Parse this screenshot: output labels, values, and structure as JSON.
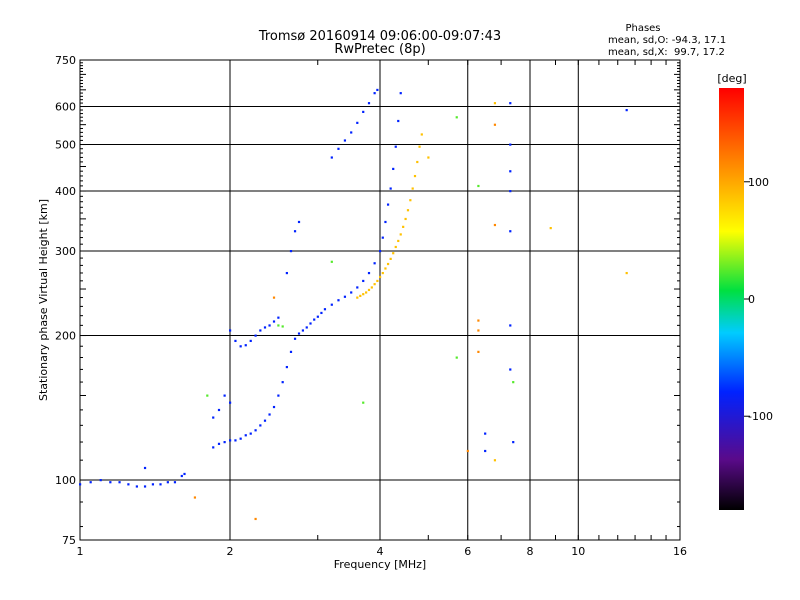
{
  "chart_data": {
    "type": "scatter",
    "title": "Tromsø 20160914 09:06:00-09:07:43",
    "subtitle": "RwPretec (8p)",
    "xlabel": "Frequency [MHz]",
    "ylabel": "Stationary phase Virtual Height [km]",
    "x_scale": "log",
    "y_scale": "log",
    "xlim": [
      1,
      16
    ],
    "ylim": [
      75,
      750
    ],
    "x_ticks": [
      "1",
      "2",
      "4",
      "6",
      "8",
      "10",
      "16"
    ],
    "y_ticks": [
      "75",
      "100",
      "200",
      "300",
      "400",
      "500",
      "600",
      "750"
    ],
    "x_gridlines": [
      2,
      4,
      6,
      8,
      10
    ],
    "y_gridlines": [
      100,
      200,
      300,
      400,
      500,
      600
    ],
    "stats": {
      "heading": "Phases",
      "line_o": "mean, sd,O: -94.3, 17.1",
      "line_x": "mean, sd,X:  99.7, 17.2"
    },
    "colorbar": {
      "label": "[deg]",
      "ticks": [
        "100",
        "0",
        "-100"
      ],
      "tick_values": [
        100,
        0,
        -100
      ],
      "range": [
        -180,
        180
      ]
    },
    "series": [
      {
        "phase": -100,
        "points": [
          [
            1.0,
            98
          ],
          [
            1.05,
            99
          ],
          [
            1.1,
            100
          ],
          [
            1.15,
            99
          ],
          [
            1.2,
            99
          ],
          [
            1.25,
            98
          ],
          [
            1.3,
            97
          ],
          [
            1.35,
            97
          ],
          [
            1.4,
            98
          ],
          [
            1.45,
            98
          ],
          [
            1.5,
            99
          ],
          [
            1.55,
            99
          ],
          [
            1.6,
            102
          ],
          [
            1.62,
            103
          ],
          [
            1.85,
            117
          ],
          [
            1.9,
            119
          ],
          [
            1.95,
            120
          ],
          [
            2.0,
            121
          ],
          [
            2.05,
            121
          ],
          [
            2.1,
            122
          ],
          [
            2.15,
            124
          ],
          [
            2.2,
            125
          ],
          [
            2.25,
            127
          ],
          [
            2.3,
            130
          ],
          [
            2.35,
            133
          ],
          [
            2.4,
            137
          ],
          [
            2.45,
            142
          ],
          [
            2.5,
            150
          ],
          [
            2.55,
            160
          ],
          [
            2.6,
            172
          ],
          [
            2.65,
            185
          ],
          [
            2.7,
            197
          ],
          [
            2.75,
            202
          ],
          [
            2.8,
            205
          ],
          [
            2.85,
            208
          ],
          [
            2.9,
            212
          ],
          [
            2.95,
            216
          ],
          [
            3.0,
            219
          ],
          [
            3.05,
            223
          ],
          [
            3.1,
            227
          ],
          [
            3.2,
            232
          ],
          [
            3.3,
            237
          ],
          [
            3.4,
            241
          ],
          [
            3.5,
            246
          ],
          [
            3.6,
            252
          ],
          [
            3.7,
            260
          ],
          [
            3.8,
            270
          ],
          [
            3.9,
            283
          ],
          [
            4.0,
            300
          ],
          [
            4.05,
            320
          ],
          [
            4.1,
            345
          ],
          [
            4.15,
            375
          ],
          [
            4.2,
            405
          ],
          [
            4.25,
            445
          ],
          [
            4.3,
            495
          ],
          [
            4.35,
            560
          ],
          [
            4.4,
            640
          ],
          [
            2.0,
            205
          ],
          [
            2.05,
            195
          ],
          [
            2.1,
            190
          ],
          [
            2.15,
            191
          ],
          [
            2.2,
            195
          ],
          [
            2.25,
            200
          ],
          [
            2.3,
            205
          ],
          [
            2.35,
            208
          ],
          [
            2.4,
            210
          ],
          [
            2.45,
            214
          ],
          [
            2.5,
            218
          ],
          [
            2.6,
            270
          ],
          [
            2.65,
            300
          ],
          [
            2.7,
            330
          ],
          [
            2.75,
            345
          ],
          [
            1.85,
            135
          ],
          [
            1.9,
            140
          ],
          [
            1.95,
            150
          ],
          [
            2.0,
            145
          ],
          [
            3.2,
            470
          ],
          [
            3.3,
            490
          ],
          [
            3.4,
            510
          ],
          [
            3.5,
            530
          ],
          [
            3.6,
            555
          ],
          [
            3.7,
            585
          ],
          [
            3.8,
            610
          ],
          [
            3.9,
            640
          ],
          [
            3.95,
            650
          ],
          [
            1.35,
            106
          ],
          [
            7.3,
            610
          ],
          [
            7.3,
            500
          ],
          [
            7.3,
            440
          ],
          [
            7.3,
            400
          ],
          [
            7.3,
            330
          ],
          [
            7.3,
            210
          ],
          [
            7.3,
            170
          ],
          [
            6.5,
            125
          ],
          [
            6.5,
            115
          ],
          [
            7.4,
            120
          ],
          [
            12.5,
            590
          ]
        ]
      },
      {
        "phase": 110,
        "points": [
          [
            3.6,
            240
          ],
          [
            3.65,
            242
          ],
          [
            3.7,
            244
          ],
          [
            3.75,
            246
          ],
          [
            3.8,
            249
          ],
          [
            3.85,
            252
          ],
          [
            3.9,
            256
          ],
          [
            3.95,
            260
          ],
          [
            4.0,
            265
          ],
          [
            4.05,
            270
          ],
          [
            4.1,
            276
          ],
          [
            4.15,
            282
          ],
          [
            4.2,
            289
          ],
          [
            4.25,
            297
          ],
          [
            4.3,
            306
          ],
          [
            4.35,
            315
          ],
          [
            4.4,
            325
          ],
          [
            4.45,
            337
          ],
          [
            4.5,
            350
          ],
          [
            4.55,
            365
          ],
          [
            4.6,
            383
          ],
          [
            4.65,
            405
          ],
          [
            4.7,
            430
          ],
          [
            4.75,
            460
          ],
          [
            4.8,
            495
          ],
          [
            4.85,
            525
          ],
          [
            5.0,
            470
          ],
          [
            6.8,
            610
          ],
          [
            8.8,
            335
          ],
          [
            12.5,
            270
          ],
          [
            6.8,
            110
          ]
        ]
      },
      {
        "phase": 20,
        "points": [
          [
            2.5,
            210
          ],
          [
            2.55,
            209
          ],
          [
            3.2,
            285
          ],
          [
            3.7,
            145
          ],
          [
            5.7,
            570
          ],
          [
            6.3,
            410
          ],
          [
            1.8,
            150
          ],
          [
            5.7,
            180
          ],
          [
            7.4,
            160
          ]
        ]
      },
      {
        "phase": 150,
        "points": [
          [
            2.45,
            240
          ],
          [
            6.8,
            550
          ],
          [
            6.8,
            340
          ],
          [
            6.3,
            215
          ],
          [
            6.3,
            205
          ],
          [
            6.3,
            185
          ],
          [
            6.0,
            115
          ],
          [
            2.25,
            83
          ],
          [
            1.7,
            92
          ]
        ]
      }
    ]
  }
}
